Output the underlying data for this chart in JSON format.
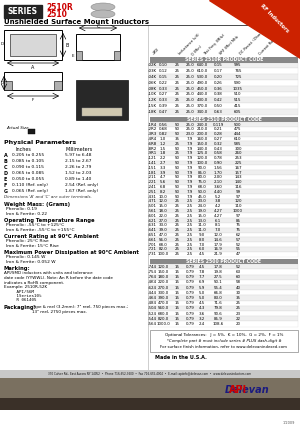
{
  "title_series": "SERIES",
  "title_part1": "2510R",
  "title_part2": "2510",
  "subtitle": "Unshielded Surface Mount Inductors",
  "bg_color": "#ffffff",
  "table_header_bg": "#888888",
  "red_color": "#cc0000",
  "corner_bg": "#cc2200",
  "rf_text": "RF Inductors",
  "table1_title": "SERIES 2510R PRODUCT CODE",
  "table2_title": "SERIES 2510 PRODUCT CODE",
  "table3_title": "SERIES 2500 PRODUCT CODE",
  "col_labels": [
    "-XXX",
    "Inductance\n(uH)",
    "Q\n(Min)",
    "Test\nFreq.\n(MHz)",
    "SRF\n(Min)\nMHz",
    "DC Resist.\n(Ohm Max)",
    "Current\nRating\n(mA)"
  ],
  "table1_data": [
    [
      "-02K",
      "0.10",
      "25",
      "25.0",
      "640.0",
      "0.15",
      "995"
    ],
    [
      "-03K",
      "0.12",
      "25",
      "25.0",
      "610.0",
      "0.17",
      "765"
    ],
    [
      "-04K",
      "0.15",
      "25",
      "25.0",
      "530.0",
      "0.20",
      "725"
    ],
    [
      "-06K",
      "0.22",
      "25",
      "25.0",
      "490.0",
      "0.26",
      "590"
    ],
    [
      "-08K",
      "0.33",
      "25",
      "25.0",
      "450.0",
      "0.36",
      "1035"
    ],
    [
      "-10K",
      "0.27",
      "25",
      "25.0",
      "440.0",
      "0.38",
      "510"
    ],
    [
      "-12K",
      "0.33",
      "25",
      "25.0",
      "430.0",
      "0.42",
      "515"
    ],
    [
      "-15K",
      "0.39",
      "25",
      "25.0",
      "370.0",
      "0.50",
      "415"
    ],
    [
      "-18K",
      "0.47",
      "25",
      "25.0",
      "340.0",
      "0.63",
      "605"
    ]
  ],
  "table2_data": [
    [
      "-1R4",
      "0.56",
      "50",
      "25.0",
      "240.0",
      "0.119",
      "500"
    ],
    [
      "-2R2",
      "0.68",
      "50",
      "25.0",
      "210.0",
      "0.21",
      "475"
    ],
    [
      "-3R3",
      "0.82",
      "50",
      "23.0",
      "200.0",
      "0.28",
      "444"
    ],
    [
      "-4R4",
      "1.0",
      "35",
      "7.9",
      "160.0",
      "0.27",
      "610"
    ],
    [
      "-6R8",
      "1.2",
      "25",
      "7.9",
      "150.0",
      "0.32",
      "585"
    ],
    [
      "-8R2",
      "1.5",
      "50",
      "7.9",
      "140.0",
      "0.43",
      "300"
    ],
    [
      "-9R1",
      "1.8",
      "25",
      "7.9",
      "125.0",
      "0.58",
      "260"
    ],
    [
      "-121",
      "2.2",
      "50",
      "7.9",
      "120.0",
      "0.78",
      "253"
    ],
    [
      "-141",
      "2.7",
      "50",
      "7.9",
      "100.0",
      "0.90",
      "225"
    ],
    [
      "-151",
      "3.3",
      "50",
      "7.9",
      "90.0",
      "1.56",
      "167"
    ],
    [
      "-181",
      "3.9",
      "50",
      "7.9",
      "85.0",
      "1.70",
      "157"
    ],
    [
      "-211",
      "4.7",
      "50",
      "7.9",
      "80.0",
      "2.00",
      "143"
    ],
    [
      "-221",
      "5.6",
      "50",
      "7.9",
      "75.0",
      "2.10",
      "140"
    ],
    [
      "-241",
      "6.8",
      "50",
      "7.9",
      "68.0",
      "3.60",
      "116"
    ],
    [
      "-251",
      "8.2",
      "50",
      "7.9",
      "50.0",
      "4.40",
      "99"
    ],
    [
      "-431",
      "10.0",
      "50",
      "7.9",
      "45.0",
      "5.2",
      "97"
    ],
    [
      "-471",
      "12.0",
      "25",
      "2.5",
      "23.0",
      "3.8",
      "120"
    ],
    [
      "-501",
      "15.0",
      "25",
      "2.5",
      "24.0",
      "4.2",
      "110"
    ],
    [
      "-561",
      "18.0",
      "25",
      "2.5",
      "19.0",
      "4.27",
      "1000"
    ],
    [
      "-601",
      "22.0",
      "25",
      "2.5",
      "15.0",
      "4.27",
      "97"
    ],
    [
      "-621",
      "27.0",
      "25",
      "2.5",
      "13.0",
      "6.1",
      "85"
    ],
    [
      "-631",
      "33.0",
      "25",
      "2.5",
      "11.0",
      "8.1",
      "75"
    ],
    [
      "-641",
      "39.0",
      "25",
      "2.5",
      "11.0",
      "7.0",
      "75"
    ],
    [
      "-651",
      "47.0",
      "25",
      "2.5",
      "9.0",
      "12.0",
      "62"
    ],
    [
      "-661",
      "56.0",
      "25",
      "2.5",
      "8.0",
      "14.6",
      "57"
    ],
    [
      "-701",
      "68.0",
      "25",
      "2.5",
      "7.0",
      "17.9",
      "52"
    ],
    [
      "-721",
      "82.0",
      "25",
      "2.5",
      "6.0",
      "16.9",
      "55"
    ],
    [
      "-731",
      "100.0",
      "25",
      "2.5",
      "4.5",
      "21.9",
      "47"
    ]
  ],
  "table3_data": [
    [
      "-744",
      "120.0",
      "15",
      "0.79",
      "4.5",
      "17.8",
      "52"
    ],
    [
      "-754",
      "150.0",
      "15",
      "0.79",
      "7.8",
      "19.8",
      "63"
    ],
    [
      "-764",
      "180.0",
      "15",
      "0.79",
      "7.7",
      "27.5",
      "60"
    ],
    [
      "-4K4",
      "220.0",
      "15",
      "0.79",
      "6.9",
      "50.1",
      "58"
    ],
    [
      "-624",
      "270.0",
      "15",
      "0.79",
      "5.9",
      "55.4",
      "40"
    ],
    [
      "-444",
      "330.0",
      "15",
      "0.79",
      "5.0",
      "66.8",
      "30"
    ],
    [
      "-464",
      "390.0",
      "15",
      "0.79",
      "5.0",
      "83.0",
      "35"
    ],
    [
      "-484",
      "470.0",
      "15",
      "0.79",
      "4.5",
      "71.6",
      "25"
    ],
    [
      "-504",
      "560.0",
      "15",
      "0.79",
      "4.3",
      "79.8",
      "25"
    ],
    [
      "-524",
      "680.0",
      "15",
      "0.79",
      "3.6",
      "90.6",
      "23"
    ],
    [
      "-544",
      "820.0",
      "15",
      "0.79",
      "3.2",
      "85.9",
      "22"
    ],
    [
      "-564",
      "1000.0",
      "15",
      "0.79",
      "2.4",
      "108.6",
      "20"
    ]
  ],
  "optional_text": "Optional Tolerances:   J = 5%,  K = 10%,  G = 2%,  F = 1%",
  "complete_text": "*Complete part # must include series # PLUS dash-digit #",
  "surface_text": "For surface finish information, refer to www.delevanindexed.com",
  "made_in_usa": "Made in the U.S.A.",
  "physical_params_title": "Physical Parameters",
  "physical_params": [
    [
      "",
      "Inches",
      "Millimeters"
    ],
    [
      "A",
      "0.205 to 0.255",
      "5.97 to 6.48"
    ],
    [
      "B",
      "0.085 to 0.105",
      "2.15 to 2.67"
    ],
    [
      "C",
      "0.090 to 0.115",
      "2.26 to 2.79"
    ],
    [
      "D",
      "0.065 to 0.085",
      "1.52 to 2.03"
    ],
    [
      "E",
      "0.050 to 0.055",
      "0.89 to 1.40"
    ],
    [
      "F",
      "0.110 (Ref. only)",
      "2.54 (Ref. only)"
    ],
    [
      "G",
      "0.065 (Ref. only)",
      "1.67 (Ref. only)"
    ]
  ],
  "dim_note": "Dimensions 'A' and 'C' are outer terminals.",
  "footer_phone": "370 Culver Rd., East Aurora NY 14052  •  Phone 716-652-3600  •  Fax 716-655-4004  •  E-mail: apiinfo@delevan.com  •  www.delevaninductors.com",
  "weight_title": "Weight Mass: (Grams)",
  "weight_phenolic": "Phenolic: 0.19",
  "weight_iron": "Iron & Ferrite: 0.22",
  "op_temp_title": "Operating Temperature Range",
  "op_temp_phenolic": "Phenolic: -55°C to +125°C",
  "op_temp_iron": "Iron & Ferrite: -55°C to +155°C",
  "current_title": "Current Rating at 90°C Ambient",
  "current_phenolic": "Phenolic: 25°C Rise",
  "current_iron": "Iron & Ferrite: 15°C Rise",
  "power_title": "Maximum Power Dissipation at 90°C Ambient",
  "power_phenolic": "Phenolic: 0.145 W",
  "power_iron": "Iron & Ferrite: 0.052 W",
  "marking_title": "Marking:",
  "marking_text": "API/SMD inductors with units and tolerance\ndate code (YYWWL). Note: An R before the date code\nindicates a RoHS component.",
  "example_label": "Example: 2510R-52K",
  "example_lines": [
    "     API/56M",
    "     1Series10%",
    "     R 061405"
  ],
  "packaging_title": "Packaging:",
  "packaging_text": "Tape & reel (3.2mm): 7\" reel, 750 pieces max.;\n13\" reel, 2750 pieces max.",
  "date_code": "1/2009"
}
